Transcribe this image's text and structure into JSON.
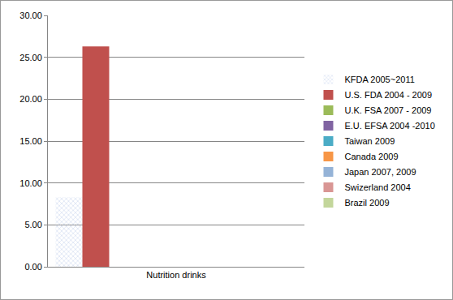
{
  "chart_data": {
    "type": "bar",
    "categories": [
      "Nutrition drinks"
    ],
    "series": [
      {
        "name": "KFDA 2005~2011",
        "color": "#3f5fb0",
        "values": [
          8.3
        ]
      },
      {
        "name": "U.S. FDA 2004 - 2009",
        "color": "#c0504d",
        "values": [
          26.3
        ]
      },
      {
        "name": "U.K. FSA 2007 - 2009",
        "color": "#9bbb59",
        "values": [
          null
        ]
      },
      {
        "name": "E.U. EFSA 2004 -2010",
        "color": "#8064a2",
        "values": [
          null
        ]
      },
      {
        "name": "Taiwan 2009",
        "color": "#4bacc6",
        "values": [
          null
        ]
      },
      {
        "name": "Canada 2009",
        "color": "#f79646",
        "values": [
          null
        ]
      },
      {
        "name": "Japan 2007, 2009",
        "color": "#95b3d7",
        "values": [
          null
        ]
      },
      {
        "name": "Swizerland 2004",
        "color": "#d99694",
        "values": [
          null
        ]
      },
      {
        "name": "Brazil 2009",
        "color": "#c3d69b",
        "values": [
          null
        ]
      }
    ],
    "ylim": [
      0,
      30
    ],
    "yticks": [
      {
        "value": 0,
        "label": "0.00"
      },
      {
        "value": 5,
        "label": "5.00"
      },
      {
        "value": 10,
        "label": "10.00"
      },
      {
        "value": 15,
        "label": "15.00"
      },
      {
        "value": 20,
        "label": "20.00"
      },
      {
        "value": 25,
        "label": "25.00"
      },
      {
        "value": 30,
        "label": "30.00"
      }
    ],
    "grid": true,
    "legend": "right"
  }
}
